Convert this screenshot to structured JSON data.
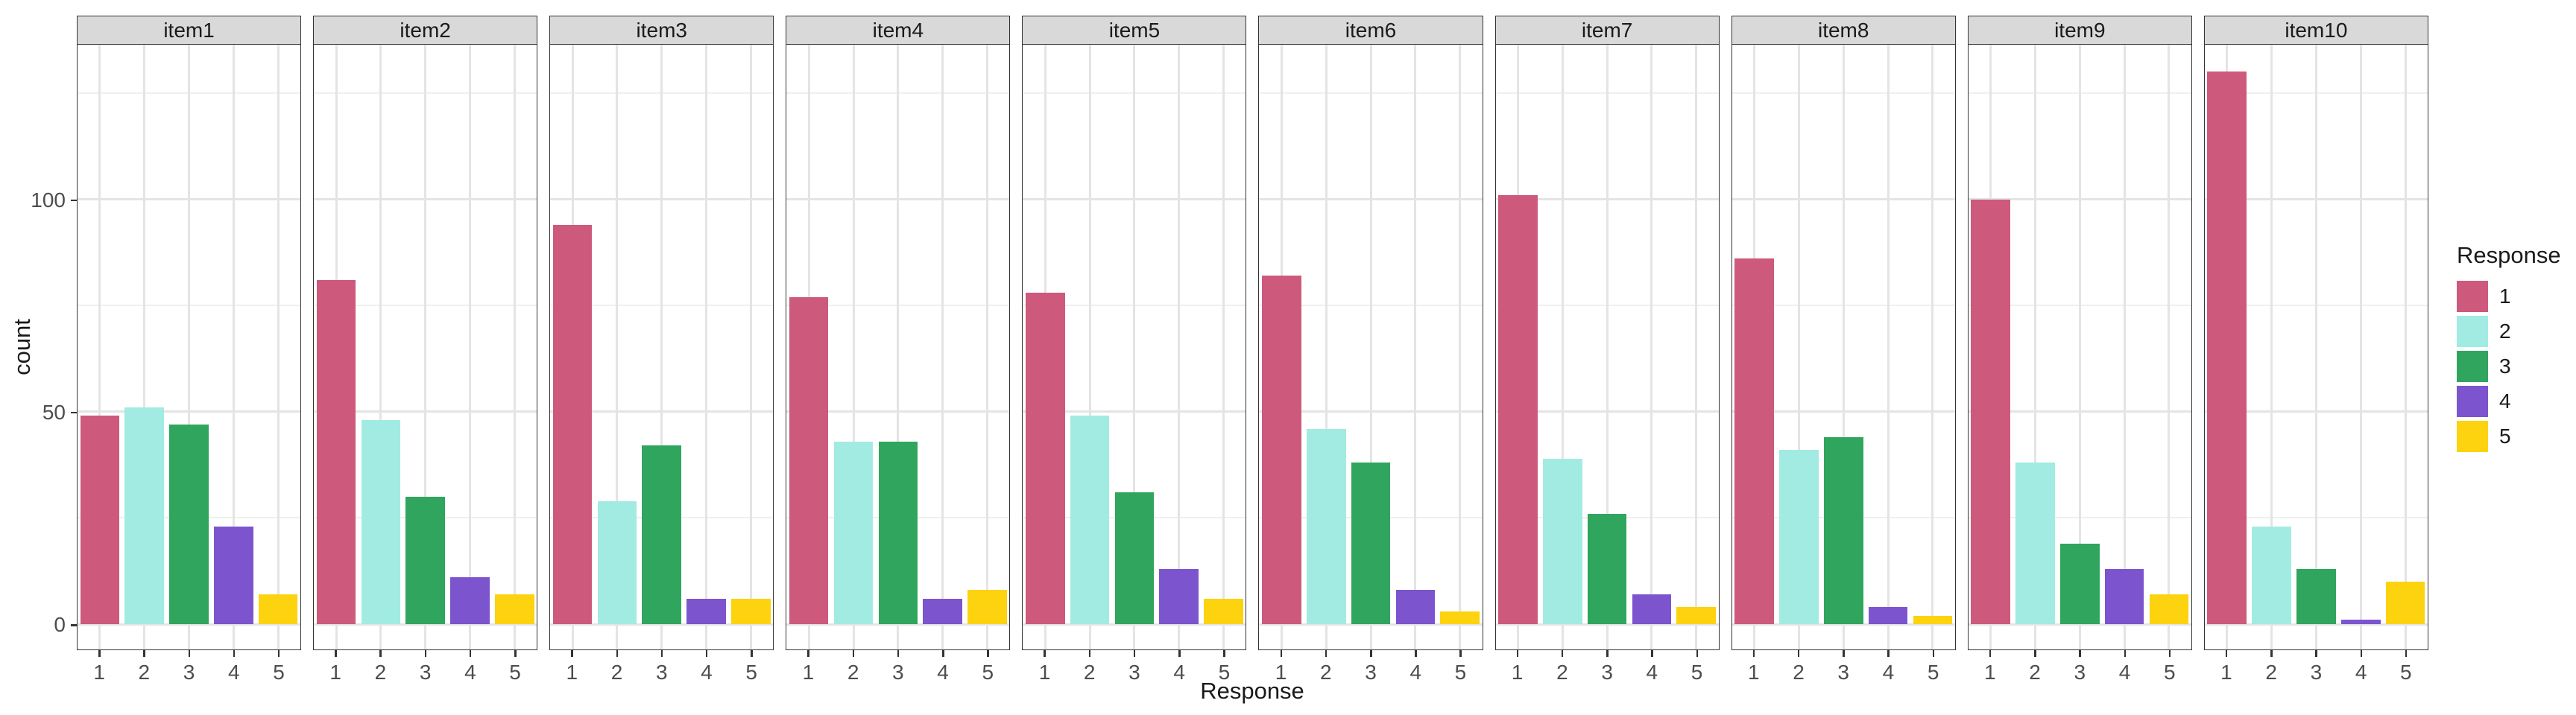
{
  "chart_data": {
    "type": "bar",
    "faceted": true,
    "title": "",
    "xlabel": "Response",
    "ylabel": "count",
    "categories": [
      "1",
      "2",
      "3",
      "4",
      "5"
    ],
    "facets": [
      {
        "label": "item1",
        "values": [
          49,
          51,
          47,
          23,
          7
        ]
      },
      {
        "label": "item2",
        "values": [
          81,
          48,
          30,
          11,
          7
        ]
      },
      {
        "label": "item3",
        "values": [
          94,
          29,
          42,
          6,
          6
        ]
      },
      {
        "label": "item4",
        "values": [
          77,
          43,
          43,
          6,
          8
        ]
      },
      {
        "label": "item5",
        "values": [
          78,
          49,
          31,
          13,
          6
        ]
      },
      {
        "label": "item6",
        "values": [
          82,
          46,
          38,
          8,
          3
        ]
      },
      {
        "label": "item7",
        "values": [
          101,
          39,
          26,
          7,
          4
        ]
      },
      {
        "label": "item8",
        "values": [
          86,
          41,
          44,
          4,
          2
        ]
      },
      {
        "label": "item9",
        "values": [
          100,
          38,
          19,
          13,
          7
        ]
      },
      {
        "label": "item10",
        "values": [
          130,
          23,
          13,
          1,
          10
        ]
      }
    ],
    "y_ticks": [
      0,
      50,
      100
    ],
    "y_tick_labels": [
      "0",
      "50",
      "100"
    ],
    "y_minor_gridlines": [
      25,
      75,
      125
    ],
    "ylim": [
      -6,
      137
    ],
    "grid": true,
    "legend": {
      "title": "Response",
      "position": "right",
      "entries": [
        {
          "label": "1",
          "color": "#CD5A7C"
        },
        {
          "label": "2",
          "color": "#A2EBE3"
        },
        {
          "label": "3",
          "color": "#30A55D"
        },
        {
          "label": "4",
          "color": "#7C55CE"
        },
        {
          "label": "5",
          "color": "#FDD20E"
        }
      ]
    },
    "style": {
      "strip_background": "#D9D9D9",
      "panel_border": "#333333",
      "grid_major_color": "#E4E4E4",
      "grid_minor_color": "#F0F0F0",
      "tick_label_color": "#4D4D4D",
      "text_color": "#1A1A1A",
      "background": "#FFFFFF"
    }
  }
}
